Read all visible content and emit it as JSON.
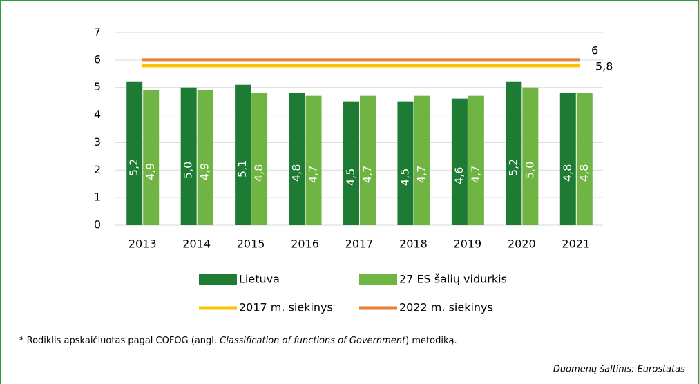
{
  "chart_data": {
    "type": "bar",
    "categories": [
      "2013",
      "2014",
      "2015",
      "2016",
      "2017",
      "2018",
      "2019",
      "2020",
      "2021"
    ],
    "series": [
      {
        "name": "Lietuva",
        "color": "#1e7b34",
        "values": [
          5.2,
          5.0,
          5.1,
          4.8,
          4.5,
          4.5,
          4.6,
          5.2,
          4.8
        ],
        "value_labels": [
          "5,2",
          "5,0",
          "5,1",
          "4,8",
          "4,5",
          "4,5",
          "4,6",
          "5,2",
          "4,8"
        ]
      },
      {
        "name": "27 ES šalių  vidurkis",
        "color": "#70b444",
        "values": [
          4.9,
          4.9,
          4.8,
          4.7,
          4.7,
          4.7,
          4.7,
          5.0,
          4.8
        ],
        "value_labels": [
          "4,9",
          "4,9",
          "4,8",
          "4,7",
          "4,7",
          "4,7",
          "4,7",
          "5,0",
          "4,8"
        ]
      }
    ],
    "targets": [
      {
        "name": "2017 m. siekinys",
        "color": "#ffc000",
        "value": 5.8,
        "value_label": "5,8"
      },
      {
        "name": "2022 m. siekinys",
        "color": "#ed7d31",
        "value": 6,
        "value_label": "6"
      }
    ],
    "ylim": [
      0,
      7
    ],
    "yticks": [
      0,
      1,
      2,
      3,
      4,
      5,
      6,
      7
    ],
    "grid": true,
    "footnote": [
      "* Rodiklis apskaičiuotas pagal COFOG (angl. ",
      "Classification of functions of Government",
      ") metodiką."
    ],
    "source": "Duomenų šaltinis: Eurostatas"
  }
}
